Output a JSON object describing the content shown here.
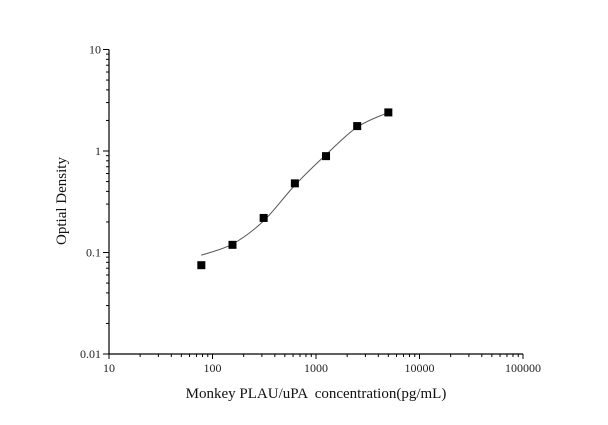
{
  "chart_data": {
    "type": "scatter",
    "title": "",
    "xlabel": "Monkey PLAU/uPA  concentration(pg/mL)",
    "ylabel": "Optial Density",
    "xscale": "log",
    "yscale": "log",
    "xlim": [
      10,
      100000
    ],
    "ylim": [
      0.01,
      10
    ],
    "grid": false,
    "x_ticks": [
      "10",
      "100",
      "1000",
      "10000",
      "100000"
    ],
    "y_ticks": [
      "10",
      "1",
      "0.1",
      "0.01"
    ],
    "series": [
      {
        "marker": "square",
        "color": "#000000",
        "x": [
          78,
          156,
          312,
          625,
          1250,
          2500,
          5000
        ],
        "y": [
          0.075,
          0.119,
          0.219,
          0.48,
          0.89,
          1.76,
          2.4
        ]
      }
    ],
    "fit_curve": {
      "color": "#555555",
      "x": [
        78,
        156,
        312,
        625,
        1250,
        2500,
        5000
      ],
      "y": [
        0.094,
        0.121,
        0.205,
        0.46,
        0.92,
        1.72,
        2.4
      ]
    }
  }
}
